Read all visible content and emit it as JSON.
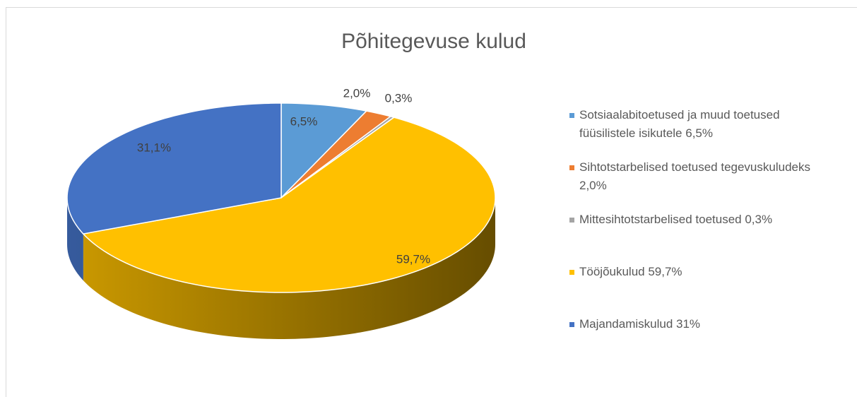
{
  "chart_data": {
    "type": "pie",
    "title": "Põhitegevuse kulud",
    "categories": [
      "Sotsiaalabitoetused ja muud toetused füüsilistele isikutele 6,5%",
      "Sihtotstarbelised toetused tegevuskuludeks 2,0%",
      "Mittesihtotstarbelised toetused 0,3%",
      "Tööjõukulud 59,7%",
      "Majandamiskulud 31%"
    ],
    "values": [
      6.5,
      2.0,
      0.3,
      59.7,
      31.1
    ],
    "value_labels": [
      "6,5%",
      "2,0%",
      "0,3%",
      "59,7%",
      "31,1%"
    ],
    "colors": [
      "#5b9bd5",
      "#ed7d31",
      "#a5a5a5",
      "#ffc000",
      "#4472c4"
    ],
    "legend": "right"
  }
}
